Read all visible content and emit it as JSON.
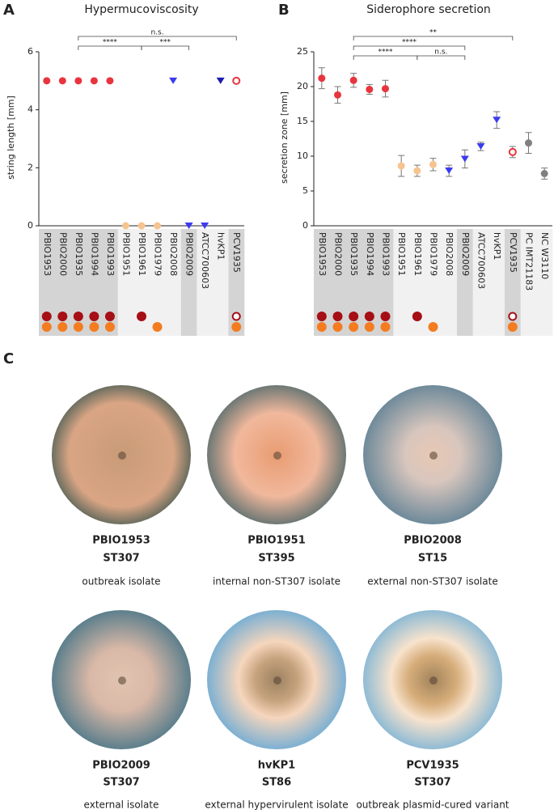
{
  "panel_labels": [
    "A",
    "B",
    "C"
  ],
  "chart_data": [
    {
      "type": "dot",
      "title": "Hypermucoviscosity",
      "y_label": "string length [mm]",
      "categories": [
        "PBIO1953",
        "PBIO2000",
        "PBIO1935",
        "PBIO1994",
        "PBIO1993",
        "PBIO1951",
        "PBIO1961",
        "PBIO1979",
        "PBIO2008",
        "PBIO2009",
        "ATCC700603",
        "hvKP1",
        "PCV1935"
      ],
      "values": [
        5,
        5,
        5,
        5,
        5,
        0,
        0,
        0,
        5,
        0,
        0,
        5,
        5
      ],
      "markers": [
        "circle",
        "circle",
        "circle",
        "circle",
        "circle",
        "circle",
        "circle",
        "circle",
        "triangle",
        "triangle",
        "triangle",
        "triangle",
        "open"
      ],
      "colors": [
        "#e8353d",
        "#e8353d",
        "#e8353d",
        "#e8353d",
        "#e8353d",
        "#f6c490",
        "#f6c490",
        "#f6c490",
        "#3b3bee",
        "#3b3bee",
        "#3b3bee",
        "#1d1db0",
        "#e8353d"
      ],
      "label_shades": [
        "#d4d4d4",
        "#d4d4d4",
        "#d4d4d4",
        "#d4d4d4",
        "#d4d4d4",
        "#f1f1f1",
        "#f1f1f1",
        "#f1f1f1",
        "#f1f1f1",
        "#d4d4d4",
        "#f1f1f1",
        "#f1f1f1",
        "#d4d4d4"
      ],
      "dots": [
        [
          "filled",
          "filled"
        ],
        [
          "filled",
          "filled"
        ],
        [
          "filled",
          "filled"
        ],
        [
          "filled",
          "filled"
        ],
        [
          "filled",
          "filled"
        ],
        [
          null,
          null
        ],
        [
          "filled",
          null
        ],
        [
          null,
          "filled"
        ],
        [
          null,
          null
        ],
        [
          null,
          null
        ],
        [
          null,
          null
        ],
        [
          null,
          null
        ],
        [
          "open",
          "filled"
        ]
      ],
      "ylim": [
        0,
        6
      ],
      "yticks": [
        0,
        2,
        4,
        6
      ],
      "brackets": [
        [
          {
            "from": "PBIO1935",
            "to": "PCV1935",
            "label": "n.s."
          }
        ],
        [
          {
            "from": "PBIO1935",
            "to": "PBIO1961",
            "label": "****"
          },
          {
            "from": "PBIO1961",
            "to": "PBIO2009",
            "label": "***"
          }
        ]
      ]
    },
    {
      "type": "dot",
      "title": "Siderophore secretion",
      "y_label": "secretion zone [mm]",
      "categories": [
        "PBIO1953",
        "PBIO2000",
        "PBIO1935",
        "PBIO1994",
        "PBIO1993",
        "PBIO1951",
        "PBIO1961",
        "PBIO1979",
        "PBIO2008",
        "PBIO2009",
        "ATCC700603",
        "hvKP1",
        "PCV1935",
        "PC IMT21183",
        "NC W3110"
      ],
      "values": [
        21.2,
        18.8,
        20.9,
        19.6,
        19.7,
        8.6,
        7.9,
        8.8,
        7.9,
        9.6,
        11.4,
        15.2,
        10.6,
        11.9,
        7.5
      ],
      "errors": [
        1.5,
        1.2,
        1.0,
        0.7,
        1.2,
        1.5,
        0.8,
        0.9,
        0.8,
        1.3,
        0.6,
        1.2,
        0.8,
        1.5,
        0.8
      ],
      "markers": [
        "circle",
        "circle",
        "circle",
        "circle",
        "circle",
        "circle",
        "circle",
        "circle",
        "triangle",
        "triangle",
        "triangle",
        "triangle",
        "open",
        "circle",
        "circle"
      ],
      "colors": [
        "#e8353d",
        "#e8353d",
        "#e8353d",
        "#e8353d",
        "#e8353d",
        "#f6c490",
        "#f6c490",
        "#f6c490",
        "#3b3bee",
        "#3b3bee",
        "#3b3bee",
        "#3b3bee",
        "#e8353d",
        "#808080",
        "#808080"
      ],
      "label_shades": [
        "#d4d4d4",
        "#d4d4d4",
        "#d4d4d4",
        "#d4d4d4",
        "#d4d4d4",
        "#f1f1f1",
        "#f1f1f1",
        "#f1f1f1",
        "#f1f1f1",
        "#d4d4d4",
        "#f1f1f1",
        "#f1f1f1",
        "#d4d4d4",
        "#f1f1f1",
        "#f1f1f1"
      ],
      "dots": [
        [
          "filled",
          "filled"
        ],
        [
          "filled",
          "filled"
        ],
        [
          "filled",
          "filled"
        ],
        [
          "filled",
          "filled"
        ],
        [
          "filled",
          "filled"
        ],
        [
          null,
          null
        ],
        [
          "filled",
          null
        ],
        [
          null,
          "filled"
        ],
        [
          null,
          null
        ],
        [
          null,
          null
        ],
        [
          null,
          null
        ],
        [
          null,
          null
        ],
        [
          "open",
          "filled"
        ],
        [
          null,
          null
        ],
        [
          null,
          null
        ]
      ],
      "ylim": [
        0,
        25
      ],
      "yticks": [
        0,
        5,
        10,
        15,
        20,
        25
      ],
      "brackets": [
        [
          {
            "from": "PBIO1935",
            "to": "PCV1935",
            "label": "**"
          }
        ],
        [
          {
            "from": "PBIO1935",
            "to": "PBIO2009",
            "label": "****"
          }
        ],
        [
          {
            "from": "PBIO1935",
            "to": "PBIO1961",
            "label": "****"
          },
          {
            "from": "PBIO1961",
            "to": "PBIO2009",
            "label": "n.s."
          }
        ]
      ]
    }
  ],
  "photos": [
    {
      "name": "PBIO1953",
      "st": "ST307",
      "caption": "outbreak isolate"
    },
    {
      "name": "PBIO1951",
      "st": "ST395",
      "caption": "internal non-ST307 isolate"
    },
    {
      "name": "PBIO2008",
      "st": "ST15",
      "caption": "external non-ST307 isolate"
    },
    {
      "name": "PBIO2009",
      "st": "ST307",
      "caption": "external isolate"
    },
    {
      "name": "hvKP1",
      "st": "ST86",
      "caption": "external hypervirulent isolate"
    },
    {
      "name": "PCV1935",
      "st": "ST307",
      "caption": "outbreak plasmid-cured variant"
    }
  ]
}
